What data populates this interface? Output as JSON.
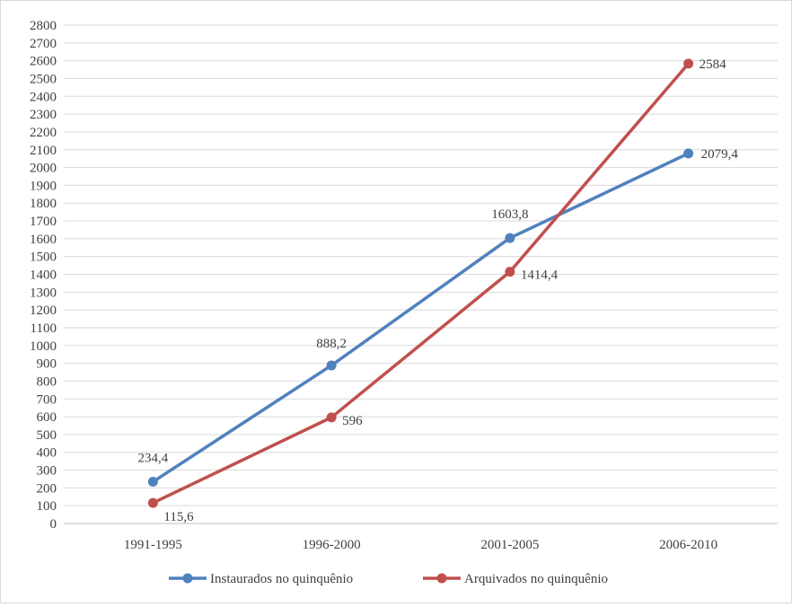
{
  "chart_data": {
    "type": "line",
    "title": "",
    "xlabel": "",
    "ylabel": "",
    "categories": [
      "1991-1995",
      "1996-2000",
      "2001-2005",
      "2006-2010"
    ],
    "ylim": [
      0,
      2800
    ],
    "ytick_step": 100,
    "grid": true,
    "legend_position": "bottom",
    "series": [
      {
        "name": "Instaurados no quinquênio",
        "color": "#4f81bd",
        "values": [
          234.4,
          888.2,
          1603.8,
          2079.4
        ],
        "labels": [
          "234,4",
          "888,2",
          "1603,8",
          "2079,4"
        ]
      },
      {
        "name": "Arquivados no quinquênio",
        "color": "#c0504d",
        "values": [
          115.6,
          596,
          1414.4,
          2584
        ],
        "labels": [
          "115,6",
          "596",
          "1414,4",
          "2584"
        ]
      }
    ]
  }
}
